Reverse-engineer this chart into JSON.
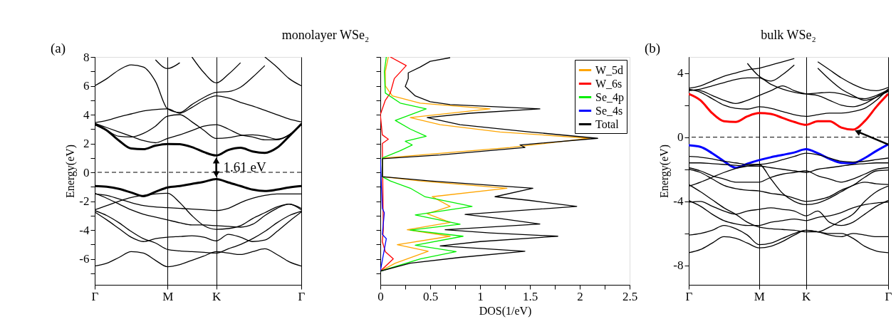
{
  "chart_data": [
    {
      "type": "line",
      "title": "monolayer WSe₂",
      "ylabel": "Energy(eV)",
      "annotations": [
        "(a)",
        "1.61 eV"
      ],
      "categories": [
        "Γ",
        null,
        null,
        null,
        null,
        null,
        "M",
        null,
        null,
        null,
        "K",
        null,
        null,
        null,
        null,
        null,
        null,
        "Γ"
      ],
      "ylim": [
        -7.8,
        8
      ],
      "yticks": [
        {
          "value": -7,
          "label": null
        },
        -6,
        {
          "value": -5,
          "label": null
        },
        -4,
        {
          "value": -3,
          "label": null
        },
        -2,
        {
          "value": -1,
          "label": null
        },
        0,
        {
          "value": 1,
          "label": null
        },
        2,
        {
          "value": 3,
          "label": null
        },
        4,
        {
          "value": 5,
          "label": null
        },
        6,
        {
          "value": 7,
          "label": null
        },
        8
      ],
      "grid": "x",
      "ref_lines": [
        {
          "axis": "y",
          "value": 0,
          "label": null,
          "color": "#000000",
          "line_style": "dashed"
        }
      ],
      "series": [
        {
          "color": "#000000",
          "values": [
            3.35,
            2.9,
            2.2,
            1.65,
            1.6,
            1.85,
            1.97,
            1.95,
            1.75,
            1.4,
            1.17,
            1.55,
            1.7,
            1.45,
            1.35,
            1.7,
            2.5,
            3.35
          ]
        },
        {
          "color": "#000000",
          "values": [
            -0.95,
            -1.0,
            -1.15,
            -1.4,
            -1.65,
            -1.35,
            -1.05,
            -0.95,
            -0.8,
            -0.65,
            -0.47,
            -0.7,
            -0.95,
            -1.2,
            -1.3,
            -1.2,
            -1.05,
            -0.95
          ]
        },
        {
          "color": "#000000",
          "values": [
            3.3,
            2.9,
            2.5,
            2.45,
            2.7,
            3.2,
            3.9,
            4.0,
            3.5,
            2.9,
            2.35,
            2.4,
            2.55,
            2.6,
            2.5,
            2.3,
            2.6,
            3.4
          ]
        },
        {
          "color": "#000000",
          "values": [
            3.4,
            3.1,
            2.8,
            2.5,
            2.2,
            2.05,
            2.35,
            2.6,
            2.9,
            3.2,
            3.3,
            3.0,
            2.6,
            2.45,
            2.25,
            2.25,
            2.6,
            3.3
          ]
        },
        {
          "color": "#000000",
          "values": [
            3.45,
            3.6,
            3.85,
            4.05,
            4.25,
            4.35,
            4.4,
            4.1,
            4.5,
            5.0,
            5.3,
            5.15,
            4.85,
            4.6,
            4.3,
            4.0,
            3.7,
            3.5
          ]
        },
        {
          "color": "#000000",
          "values": [
            6.0,
            6.5,
            7.1,
            7.45,
            7.3,
            6.3,
            4.4,
            4.15,
            4.7,
            5.2,
            5.55,
            5.6,
            5.9,
            6.6,
            7.4,
            null,
            null,
            null
          ]
        },
        {
          "color": "#000000",
          "values": [
            null,
            null,
            null,
            null,
            null,
            null,
            null,
            null,
            null,
            null,
            null,
            null,
            null,
            null,
            8.0,
            7.3,
            6.5,
            6.0
          ]
        },
        {
          "color": "#000000",
          "values": [
            null,
            null,
            null,
            null,
            null,
            null,
            null,
            null,
            8.0,
            6.9,
            6.2,
            6.8,
            7.6,
            null,
            null,
            null,
            null,
            null
          ]
        },
        {
          "color": "#000000",
          "values": [
            null,
            null,
            null,
            null,
            null,
            7.8,
            7.2,
            7.6,
            null,
            null,
            null,
            null,
            null,
            null,
            null,
            null,
            null,
            null
          ]
        },
        {
          "color": "#000000",
          "values": [
            -1.5,
            -1.6,
            -1.85,
            -2.1,
            -2.3,
            -2.4,
            -2.45,
            -2.5,
            -2.55,
            -2.6,
            -2.65,
            -2.5,
            -2.1,
            -1.8,
            -1.6,
            -1.5,
            -1.5,
            -1.5
          ]
        },
        {
          "color": "#000000",
          "values": [
            -1.45,
            -1.8,
            -2.2,
            -2.6,
            -2.9,
            -3.1,
            -3.3,
            -3.5,
            -3.65,
            -3.65,
            -3.7,
            -3.75,
            -3.8,
            -3.6,
            -3.0,
            -2.5,
            -2.2,
            -2.6
          ]
        },
        {
          "color": "#000000",
          "values": [
            -2.6,
            -2.3,
            -2.0,
            -1.75,
            -1.6,
            -1.5,
            -1.45,
            -2.1,
            -3.0,
            -3.7,
            -3.95,
            -3.9,
            -3.7,
            -3.2,
            -2.8,
            -2.4,
            -2.2,
            -2.5
          ]
        },
        {
          "color": "#000000",
          "values": [
            -2.65,
            -3.0,
            -3.5,
            -4.1,
            -4.6,
            -4.9,
            -5.35,
            -5.45,
            -5.5,
            -5.55,
            -5.6,
            -5.3,
            -5.0,
            -4.6,
            -4.1,
            -3.5,
            -3.0,
            -2.7
          ]
        },
        {
          "color": "#000000",
          "values": [
            -2.75,
            -3.3,
            -3.9,
            -4.5,
            -4.8,
            -4.6,
            -4.5,
            -4.45,
            -4.4,
            -4.5,
            -4.75,
            -4.3,
            -4.5,
            -4.8,
            -4.7,
            -4.1,
            -3.4,
            -2.75
          ]
        },
        {
          "color": "#000000",
          "values": [
            -6.5,
            -6.3,
            -5.9,
            -5.5,
            -5.6,
            -6.1,
            -6.55,
            -6.4,
            -6.1,
            -5.8,
            -5.5,
            -5.6,
            -5.7,
            -5.5,
            -5.3,
            -5.7,
            -6.2,
            -6.5
          ]
        }
      ]
    },
    {
      "type": "line",
      "orientation": "horizontal",
      "xlabel": "DOS(1/eV)",
      "legend": "top right",
      "tick_labels": "x",
      "xlim": [
        0,
        2.5
      ],
      "xticks": [
        0,
        {
          "value": 0.25,
          "label": null
        },
        0.5,
        {
          "value": 0.75,
          "label": null
        },
        1,
        {
          "value": 1.25,
          "label": null
        },
        1.5,
        {
          "value": 1.75,
          "label": null
        },
        2,
        {
          "value": 2.25,
          "label": null
        },
        2.5
      ],
      "ylim": [
        -7.8,
        8
      ],
      "yticks": [
        {
          "value": -7,
          "label": null
        },
        {
          "value": -6,
          "label": null
        },
        {
          "value": -5,
          "label": null
        },
        {
          "value": -4,
          "label": null
        },
        {
          "value": -3,
          "label": null
        },
        {
          "value": -2,
          "label": null
        },
        {
          "value": -1,
          "label": null
        },
        {
          "value": 0,
          "label": null
        },
        {
          "value": 1,
          "label": null
        },
        {
          "value": 2,
          "label": null
        },
        {
          "value": 3,
          "label": null
        },
        {
          "value": 4,
          "label": null
        },
        {
          "value": 5,
          "label": null
        },
        {
          "value": 6,
          "label": null
        },
        {
          "value": 7,
          "label": null
        },
        {
          "value": 8,
          "label": null
        }
      ],
      "series": [
        {
          "name": "W_5d",
          "color": "#ffa500",
          "x": [
            -6.85,
            -6.3,
            -5.47,
            -5.02,
            -4.43,
            -3.98,
            -3.47,
            -2.87,
            -2.36,
            -1.69,
            -1.1,
            -0.6,
            -0.3,
            0.98,
            1.72,
            2.36,
            2.8,
            3.3,
            3.8,
            4.4,
            4.8,
            5.3,
            6.0,
            7.0,
            8.0
          ],
          "values": [
            0,
            0.15,
            0.48,
            0.17,
            0.7,
            0.27,
            0.7,
            0.47,
            0.7,
            0.52,
            1.27,
            0.4,
            0.02,
            0.02,
            1.3,
            2.1,
            1.2,
            0.6,
            0.3,
            1.1,
            0.4,
            0.12,
            0.05,
            0.05,
            0.08
          ]
        },
        {
          "name": "W_6s",
          "color": "#ff0000",
          "x": [
            -6.85,
            -6.0,
            -5.5,
            -4.8,
            -4.0,
            2.0,
            2.3,
            2.6,
            4.0,
            5.0,
            5.5,
            6.0,
            6.5,
            7.4,
            8.0
          ],
          "values": [
            0,
            0.13,
            0.05,
            0.02,
            0.03,
            0.02,
            0.08,
            0.02,
            0,
            0.05,
            0.1,
            0.12,
            0.14,
            0.26,
            0.1
          ]
        },
        {
          "name": "Se_4p",
          "color": "#00ee00",
          "x": [
            -6.85,
            -6.0,
            -5.5,
            -5.05,
            -4.43,
            -4.0,
            -3.6,
            -2.95,
            -2.36,
            -1.7,
            -1.1,
            -0.6,
            -0.3,
            1.0,
            1.5,
            1.9,
            2.15,
            2.5,
            3.0,
            3.6,
            4.4,
            4.8,
            5.5,
            7.0,
            8.0
          ],
          "values": [
            0,
            0.4,
            0.76,
            0.35,
            0.83,
            0.3,
            0.8,
            0.35,
            0.92,
            0.45,
            0.3,
            0.1,
            0.02,
            0.02,
            0.2,
            0.32,
            0.25,
            0.46,
            0.3,
            0.15,
            0.46,
            0.2,
            0.05,
            0.04,
            0.06
          ]
        },
        {
          "name": "Se_4s",
          "color": "#0000ff",
          "x": [
            -6.85,
            -4.6,
            -4.3,
            -2.8,
            -2.5,
            0.98
          ],
          "values": [
            0,
            0.06,
            0.02,
            0.04,
            0.02,
            0
          ]
        },
        {
          "name": "Total",
          "color": "#000000",
          "x": [
            -6.85,
            -6.3,
            -5.9,
            -5.47,
            -5.1,
            -4.8,
            -4.43,
            -4.2,
            -3.98,
            -3.58,
            -3.2,
            -2.92,
            -2.36,
            -1.95,
            -1.69,
            -1.1,
            -0.6,
            -0.3,
            0.95,
            1.2,
            1.72,
            1.9,
            2.36,
            2.8,
            3.3,
            3.8,
            4.1,
            4.4,
            4.7,
            4.9,
            5.3,
            5.95,
            6.5,
            6.9,
            7.3,
            7.7,
            7.95
          ],
          "values": [
            0,
            0.3,
            0.8,
            1.45,
            0.6,
            1.0,
            1.78,
            1.1,
            0.65,
            1.6,
            1.2,
            0.85,
            1.97,
            1.5,
            1.15,
            1.53,
            0.5,
            0.02,
            0.02,
            0.6,
            1.45,
            1.4,
            2.18,
            1.5,
            0.8,
            0.47,
            0.9,
            1.6,
            0.7,
            0.5,
            0.35,
            0.25,
            0.28,
            0.28,
            0.4,
            0.5,
            0.7
          ]
        }
      ]
    },
    {
      "type": "line",
      "title": "bulk WSe₂",
      "ylabel": "Energy(eV)",
      "annotations": [
        "(b)"
      ],
      "categories": [
        "Γ",
        null,
        null,
        null,
        null,
        null,
        "M",
        null,
        null,
        null,
        "K",
        null,
        null,
        null,
        null,
        null,
        null,
        "Γ"
      ],
      "ylim": [
        -9.2,
        5
      ],
      "yticks": [
        -8,
        {
          "value": -6,
          "label": null
        },
        -4,
        {
          "value": -2,
          "label": null
        },
        0,
        {
          "value": 2,
          "label": null
        },
        4
      ],
      "grid": "x",
      "ref_lines": [
        {
          "axis": "y",
          "value": 0,
          "label": null,
          "color": "#000000",
          "line_style": "dashed"
        }
      ],
      "series": [
        {
          "color": "#ff0000",
          "values": [
            2.7,
            2.3,
            1.5,
            1.0,
            0.95,
            1.3,
            1.5,
            1.45,
            1.2,
            0.95,
            0.77,
            1.0,
            1.0,
            0.6,
            0.47,
            1.0,
            1.9,
            2.7
          ]
        },
        {
          "color": "#0000ff",
          "values": [
            -0.5,
            -0.6,
            -1.0,
            -1.5,
            -1.9,
            -1.65,
            -1.43,
            -1.25,
            -1.1,
            -0.95,
            -0.75,
            -1.0,
            -1.35,
            -1.6,
            -1.62,
            -1.3,
            -0.85,
            -0.45
          ]
        },
        {
          "color": "#000000",
          "values": [
            3.0,
            2.8,
            2.4,
            2.0,
            1.8,
            1.75,
            1.9,
            1.8,
            1.6,
            1.4,
            1.3,
            1.4,
            1.5,
            1.5,
            1.6,
            1.8,
            2.3,
            3.0
          ]
        },
        {
          "color": "#000000",
          "values": [
            2.95,
            2.9,
            2.6,
            2.3,
            2.1,
            2.3,
            2.6,
            2.9,
            3.2,
            2.9,
            2.7,
            2.6,
            2.3,
            2.0,
            1.9,
            2.1,
            2.5,
            2.85
          ]
        },
        {
          "color": "#000000",
          "values": [
            3.05,
            3.2,
            3.5,
            3.8,
            4.0,
            4.2,
            4.3,
            4.5,
            4.7,
            4.9,
            null,
            4.7,
            4.2,
            3.7,
            3.3,
            3.0,
            2.9,
            3.1
          ]
        },
        {
          "color": "#000000",
          "values": [
            2.9,
            3.0,
            3.2,
            3.4,
            3.6,
            3.7,
            3.7,
            3.3,
            3.0,
            2.8,
            2.7,
            2.75,
            2.8,
            2.7,
            2.5,
            2.4,
            2.6,
            2.95
          ]
        },
        {
          "color": "#000000",
          "values": [
            null,
            null,
            null,
            null,
            null,
            4.6,
            3.8,
            3.5,
            3.9,
            4.5,
            null,
            null,
            null,
            null,
            null,
            null,
            null,
            null
          ]
        },
        {
          "color": "#000000",
          "values": [
            null,
            null,
            null,
            null,
            null,
            null,
            null,
            null,
            null,
            null,
            null,
            4.3,
            3.6,
            3.0,
            2.6,
            2.3,
            2.5,
            2.9
          ]
        },
        {
          "color": "#000000",
          "values": [
            -1.2,
            -1.25,
            -1.35,
            -1.5,
            -1.6,
            -1.7,
            -1.7,
            -1.6,
            -1.4,
            -1.2,
            -1.0,
            -1.1,
            -1.3,
            -1.5,
            -1.55,
            -1.5,
            -1.4,
            -1.3
          ]
        },
        {
          "color": "#000000",
          "values": [
            -1.6,
            -1.6,
            -1.65,
            -1.7,
            -1.75,
            -1.8,
            -1.8,
            -1.9,
            -2.0,
            -2.1,
            -2.2,
            -2.0,
            -1.9,
            -1.8,
            -1.7,
            -1.65,
            -1.6,
            -1.6
          ]
        },
        {
          "color": "#000000",
          "values": [
            -1.9,
            -2.1,
            -2.4,
            -2.6,
            -2.8,
            -2.8,
            -2.8,
            -2.5,
            -2.3,
            -2.2,
            -2.1,
            -2.4,
            -2.6,
            -2.8,
            -2.6,
            -2.3,
            -2.0,
            -1.9
          ]
        },
        {
          "color": "#000000",
          "values": [
            -2.0,
            -2.2,
            -2.6,
            -3.0,
            -3.2,
            -3.3,
            -3.35,
            -3.5,
            -3.6,
            -3.8,
            -4.0,
            -3.9,
            -3.7,
            -3.3,
            -3.0,
            -2.5,
            -2.1,
            -2.05
          ]
        },
        {
          "color": "#000000",
          "values": [
            -3.05,
            -2.8,
            -2.5,
            -2.2,
            -1.95,
            -1.8,
            -1.7,
            -2.6,
            -3.5,
            -4.0,
            -4.2,
            -4.1,
            -3.8,
            -3.4,
            -3.0,
            -2.8,
            -2.9,
            -2.95
          ]
        },
        {
          "color": "#000000",
          "values": [
            -2.95,
            -3.4,
            -3.9,
            -4.4,
            -4.8,
            -5.3,
            -5.6,
            -5.7,
            -5.75,
            -5.8,
            -5.9,
            -5.9,
            -5.6,
            -5.2,
            -4.8,
            -4.0,
            -3.4,
            -3.05
          ]
        },
        {
          "color": "#000000",
          "values": [
            -3.95,
            -4.3,
            -4.8,
            -5.2,
            -5.4,
            -5.5,
            -5.5,
            -5.3,
            -5.2,
            -5.1,
            -5.2,
            -5.0,
            -4.9,
            -4.7,
            -4.4,
            -4.2,
            -4.1,
            -4.05
          ]
        },
        {
          "color": "#000000",
          "values": [
            -4.05,
            -4.0,
            -4.3,
            -4.6,
            -4.8,
            -4.6,
            -4.5,
            -4.4,
            -4.5,
            -4.6,
            -4.9,
            -4.6,
            -5.3,
            -5.5,
            -5.3,
            -4.8,
            -4.3,
            -3.95
          ]
        },
        {
          "color": "#000000",
          "values": [
            -6.1,
            -6.0,
            -5.8,
            -5.5,
            -5.7,
            -6.1,
            -6.7,
            -6.6,
            -6.3,
            -6.0,
            -5.8,
            -5.9,
            -6.1,
            -6.2,
            -6.0,
            -6.1,
            -6.2,
            -6.2
          ]
        },
        {
          "color": "#000000",
          "values": [
            -7.2,
            -7.0,
            -6.6,
            -6.2,
            -6.3,
            -6.6,
            -6.9,
            -6.8,
            -6.5,
            -6.1,
            -5.8,
            -5.9,
            -6.0,
            -6.0,
            -6.3,
            -6.8,
            -7.1,
            -7.2
          ]
        }
      ]
    }
  ]
}
